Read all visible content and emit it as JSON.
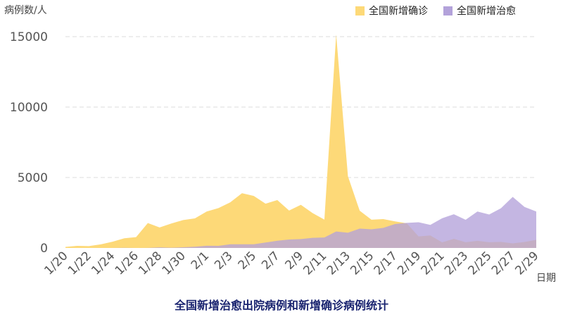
{
  "chart_data": {
    "type": "area",
    "title": "全国新增治愈出院病例和新增确诊病例统计",
    "ylabel": "病例数/人",
    "xlabel": "日期",
    "ylim": [
      0,
      15000
    ],
    "yticks": [
      0,
      5000,
      10000,
      15000
    ],
    "grid": true,
    "legend_position": "top-right",
    "x": [
      "1/20",
      "1/21",
      "1/22",
      "1/23",
      "1/24",
      "1/25",
      "1/26",
      "1/27",
      "1/28",
      "1/29",
      "1/30",
      "1/31",
      "2/1",
      "2/2",
      "2/3",
      "2/4",
      "2/5",
      "2/6",
      "2/7",
      "2/8",
      "2/9",
      "2/10",
      "2/11",
      "2/12",
      "2/13",
      "2/14",
      "2/15",
      "2/16",
      "2/17",
      "2/18",
      "2/19",
      "2/20",
      "2/21",
      "2/22",
      "2/23",
      "2/24",
      "2/25",
      "2/26",
      "2/27",
      "2/28",
      "2/29"
    ],
    "xtick_labels": [
      "1/20",
      "1/22",
      "1/24",
      "1/26",
      "1/28",
      "1/30",
      "2/1",
      "2/3",
      "2/5",
      "2/7",
      "2/9",
      "2/11",
      "2/13",
      "2/15",
      "2/17",
      "2/19",
      "2/21",
      "2/23",
      "2/25",
      "2/27",
      "2/29"
    ],
    "series": [
      {
        "name": "全国新增确诊",
        "color": "#fdd978",
        "values": [
          77,
          149,
          131,
          259,
          444,
          688,
          769,
          1771,
          1459,
          1737,
          1982,
          2102,
          2590,
          2829,
          3235,
          3887,
          3694,
          3143,
          3399,
          2656,
          3062,
          2478,
          2015,
          15152,
          5090,
          2641,
          2009,
          2048,
          1886,
          1749,
          820,
          889,
          397,
          648,
          409,
          508,
          406,
          433,
          327,
          427,
          573
        ]
      },
      {
        "name": "全国新增治愈",
        "color": "#b3a2da",
        "values": [
          0,
          0,
          0,
          0,
          3,
          15,
          2,
          9,
          43,
          21,
          47,
          85,
          157,
          147,
          262,
          261,
          261,
          387,
          510,
          600,
          632,
          716,
          744,
          1171,
          1081,
          1373,
          1323,
          1425,
          1701,
          1779,
          1824,
          1640,
          2109,
          2393,
          1997,
          2589,
          2377,
          2817,
          3622,
          2915,
          2589
        ]
      }
    ]
  }
}
